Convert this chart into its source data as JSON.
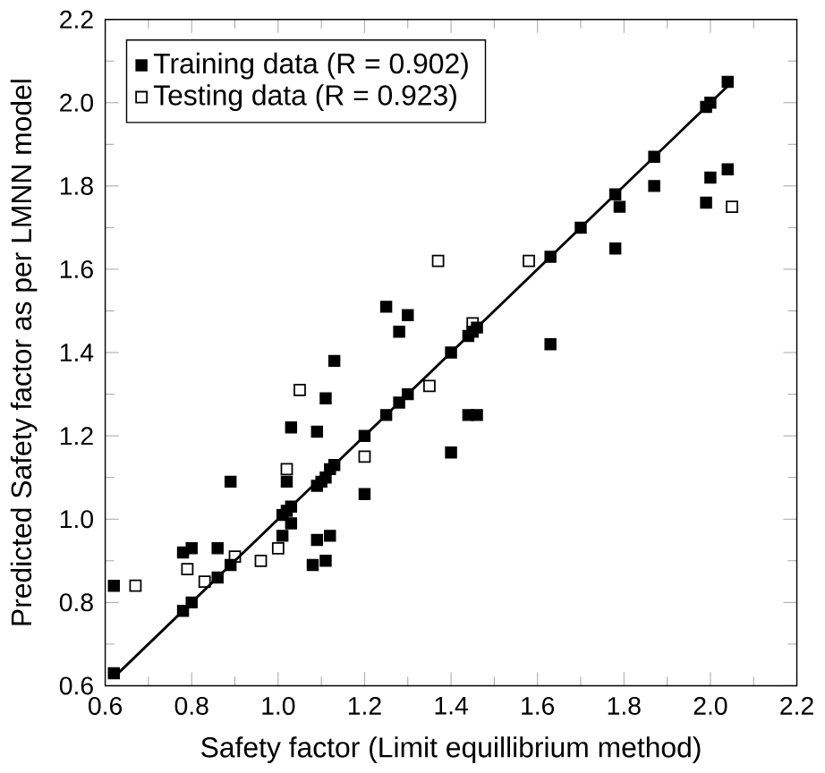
{
  "chart_data": {
    "type": "scatter",
    "xlabel": "Safety factor (Limit equillibrium method)",
    "ylabel": "Predicted Safety factor as per LMNN model",
    "xlim": [
      0.6,
      2.2
    ],
    "ylim": [
      0.6,
      2.2
    ],
    "xticks": [
      {
        "value": 0.6,
        "label": "0.6"
      },
      {
        "value": 0.8,
        "label": "0.8"
      },
      {
        "value": 1.0,
        "label": "1.0"
      },
      {
        "value": 1.2,
        "label": "1.2"
      },
      {
        "value": 1.4,
        "label": "1.4"
      },
      {
        "value": 1.6,
        "label": "1.6"
      },
      {
        "value": 1.8,
        "label": "1.8"
      },
      {
        "value": 2.0,
        "label": "2.0"
      },
      {
        "value": 2.2,
        "label": "2.2"
      }
    ],
    "yticks": [
      {
        "value": 0.6,
        "label": "0.6"
      },
      {
        "value": 0.8,
        "label": "0.8"
      },
      {
        "value": 1.0,
        "label": "1.0"
      },
      {
        "value": 1.2,
        "label": "1.2"
      },
      {
        "value": 1.4,
        "label": "1.4"
      },
      {
        "value": 1.6,
        "label": "1.6"
      },
      {
        "value": 1.8,
        "label": "1.8"
      },
      {
        "value": 2.0,
        "label": "2.0"
      },
      {
        "value": 2.2,
        "label": "2.2"
      }
    ],
    "legend": "top left",
    "marker": "square",
    "grid": false,
    "series": [
      {
        "name": "Training data (R = 0.902)",
        "color": "#000000",
        "x": [
          0.62,
          0.62,
          0.78,
          0.8,
          0.78,
          0.8,
          0.86,
          0.86,
          0.89,
          0.89,
          1.01,
          1.02,
          1.03,
          1.01,
          1.03,
          1.02,
          1.03,
          1.08,
          1.09,
          1.09,
          1.09,
          1.1,
          1.11,
          1.11,
          1.11,
          1.12,
          1.13,
          1.12,
          1.13,
          1.2,
          1.2,
          1.25,
          1.25,
          1.28,
          1.28,
          1.3,
          1.3,
          1.4,
          1.4,
          1.44,
          1.45,
          1.44,
          1.46,
          1.46,
          1.63,
          1.63,
          1.7,
          1.78,
          1.78,
          1.79,
          1.87,
          1.87,
          1.99,
          2.0,
          1.99,
          2.0,
          2.04,
          2.04
        ],
        "values": [
          0.63,
          0.84,
          0.78,
          0.8,
          0.92,
          0.93,
          0.86,
          0.93,
          0.89,
          1.09,
          1.01,
          1.02,
          1.03,
          0.96,
          0.99,
          1.09,
          1.22,
          0.89,
          0.95,
          1.08,
          1.21,
          1.09,
          1.1,
          1.29,
          0.9,
          1.12,
          1.13,
          0.96,
          1.38,
          1.2,
          1.06,
          1.25,
          1.51,
          1.28,
          1.45,
          1.3,
          1.49,
          1.4,
          1.16,
          1.44,
          1.45,
          1.25,
          1.25,
          1.46,
          1.63,
          1.42,
          1.7,
          1.78,
          1.65,
          1.75,
          1.87,
          1.8,
          1.99,
          2.0,
          1.76,
          1.82,
          2.05,
          1.84
        ]
      },
      {
        "name": "Testing data (R = 0.923)",
        "color": "#000000",
        "x": [
          0.67,
          0.79,
          0.83,
          0.9,
          0.96,
          1.0,
          1.02,
          1.05,
          1.2,
          1.35,
          1.37,
          1.45,
          1.58,
          2.05
        ],
        "values": [
          0.84,
          0.88,
          0.85,
          0.91,
          0.9,
          0.93,
          1.12,
          1.31,
          1.15,
          1.32,
          1.62,
          1.47,
          1.62,
          1.75
        ]
      },
      {
        "type": "line",
        "marker": "none",
        "color": "#000000",
        "line_style": "solid",
        "x": [
          0.62,
          2.04
        ],
        "values": [
          0.62,
          2.04
        ]
      }
    ]
  }
}
